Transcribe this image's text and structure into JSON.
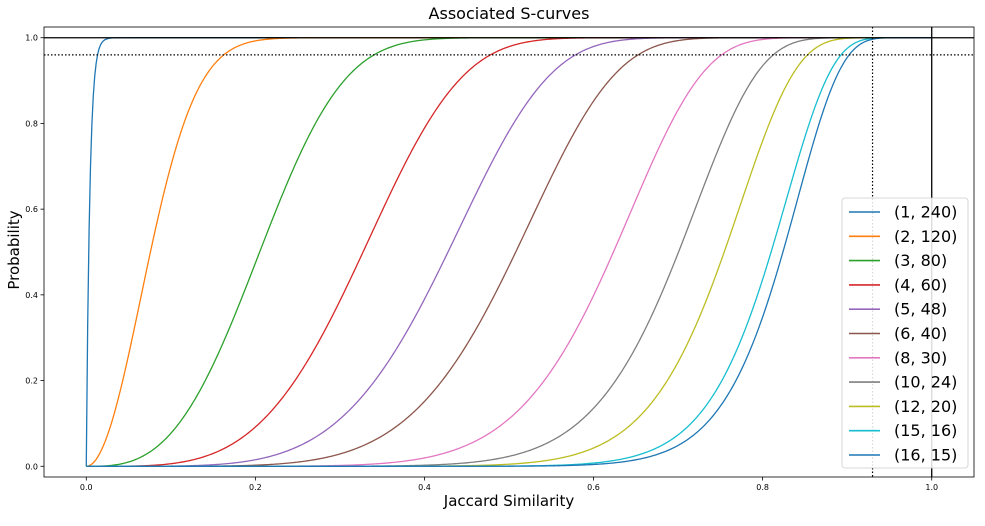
{
  "chart_data": {
    "type": "line",
    "title": "Associated S-curves",
    "xlabel": "Jaccard Similarity",
    "ylabel": "Probability",
    "xlim": [
      -0.05,
      1.05
    ],
    "ylim": [
      -0.025,
      1.025
    ],
    "xticks": [
      "0.0",
      "0.2",
      "0.4",
      "0.6",
      "0.8",
      "1.0"
    ],
    "yticks": [
      "0.0",
      "0.2",
      "0.4",
      "0.6",
      "0.8",
      "1.0"
    ],
    "grid": false,
    "legend_position": "lower-right",
    "curve_formula": "1 - (1 - s^r)^b",
    "series": [
      {
        "name": "(1, 240)",
        "r": 1,
        "b": 240,
        "color": "#1f77b4"
      },
      {
        "name": "(2, 120)",
        "r": 2,
        "b": 120,
        "color": "#ff7f0e"
      },
      {
        "name": "(3, 80)",
        "r": 3,
        "b": 80,
        "color": "#2ca02c"
      },
      {
        "name": "(4, 60)",
        "r": 4,
        "b": 60,
        "color": "#d62728"
      },
      {
        "name": "(5, 48)",
        "r": 5,
        "b": 48,
        "color": "#9467bd"
      },
      {
        "name": "(6, 40)",
        "r": 6,
        "b": 40,
        "color": "#8c564b"
      },
      {
        "name": "(8, 30)",
        "r": 8,
        "b": 30,
        "color": "#e377c2"
      },
      {
        "name": "(10, 24)",
        "r": 10,
        "b": 24,
        "color": "#7f7f7f"
      },
      {
        "name": "(12, 20)",
        "r": 12,
        "b": 20,
        "color": "#bcbd22"
      },
      {
        "name": "(15, 16)",
        "r": 15,
        "b": 16,
        "color": "#17becf"
      },
      {
        "name": "(16, 15)",
        "r": 16,
        "b": 15,
        "color": "#1f77b4"
      }
    ],
    "reference_lines": [
      {
        "orientation": "horizontal",
        "value": 1.0,
        "style": "solid",
        "color": "#000000"
      },
      {
        "orientation": "vertical",
        "value": 1.0,
        "style": "solid",
        "color": "#000000"
      },
      {
        "orientation": "horizontal",
        "value": 0.96,
        "style": "dotted",
        "color": "#000000"
      },
      {
        "orientation": "vertical",
        "value": 0.93,
        "style": "dotted",
        "color": "#000000"
      }
    ]
  }
}
